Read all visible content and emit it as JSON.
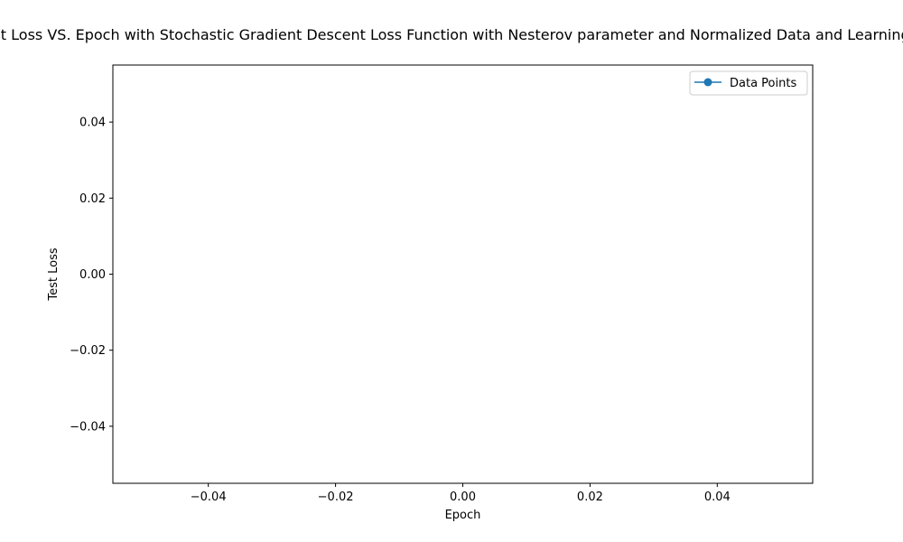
{
  "chart_data": {
    "type": "line",
    "title": "Test Loss VS. Epoch with Stochastic Gradient Descent Loss Function with Nesterov parameter and Normalized Data and Learning Rate",
    "xlabel": "Epoch",
    "ylabel": "Test Loss",
    "xlim": [
      -0.055,
      0.055
    ],
    "ylim": [
      -0.055,
      0.055
    ],
    "xticks": [
      -0.04,
      -0.02,
      0.0,
      0.02,
      0.04
    ],
    "yticks": [
      -0.04,
      -0.02,
      0.0,
      0.02,
      0.04
    ],
    "xtick_labels": [
      "−0.04",
      "−0.02",
      "0.00",
      "0.02",
      "0.04"
    ],
    "ytick_labels": [
      "−0.04",
      "−0.02",
      "0.00",
      "0.02",
      "0.04"
    ],
    "grid": false,
    "legend_position": "upper right",
    "series": [
      {
        "name": "Data Points",
        "color": "#1f77b4",
        "marker": "circle",
        "x": [],
        "y": []
      }
    ]
  }
}
